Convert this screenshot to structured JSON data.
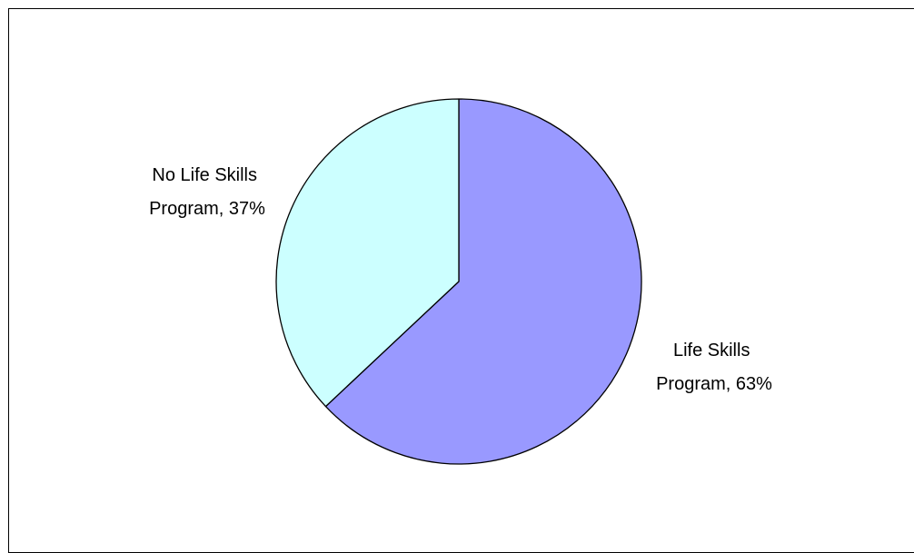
{
  "chart_data": {
    "type": "pie",
    "title": "",
    "slices": [
      {
        "label_line1": "Life Skills",
        "label_line2": "Program, 63%",
        "name": "Life Skills Program",
        "value": 63,
        "color": "#9999ff"
      },
      {
        "label_line1": "No Life Skills",
        "label_line2": "Program, 37%",
        "name": "No Life Skills Program",
        "value": 37,
        "color": "#ccffff"
      }
    ],
    "start_angle": "12 o'clock",
    "direction": "clockwise",
    "legend": "none",
    "outline_color": "#000000"
  }
}
